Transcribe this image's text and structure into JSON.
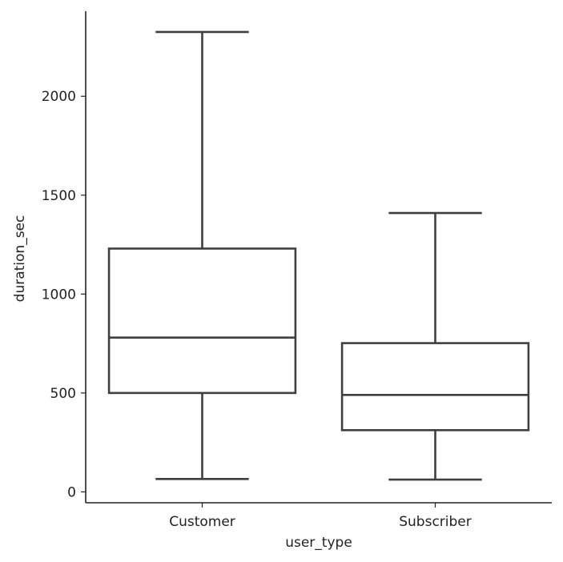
{
  "chart_data": {
    "type": "box",
    "xlabel": "user_type",
    "ylabel": "duration_sec",
    "categories": [
      "Customer",
      "Subscriber"
    ],
    "colors": [
      "#2e77b0",
      "#e3832a"
    ],
    "boxes": [
      {
        "category": "Customer",
        "whisker_low": 65,
        "q1": 500,
        "median": 780,
        "q3": 1230,
        "whisker_high": 2325
      },
      {
        "category": "Subscriber",
        "whisker_low": 62,
        "q1": 312,
        "median": 490,
        "q3": 752,
        "whisker_high": 1410
      }
    ],
    "yticks": [
      0,
      500,
      1000,
      1500,
      2000
    ],
    "ylim": [
      -55,
      2430
    ],
    "grid": false,
    "legend": "none"
  }
}
